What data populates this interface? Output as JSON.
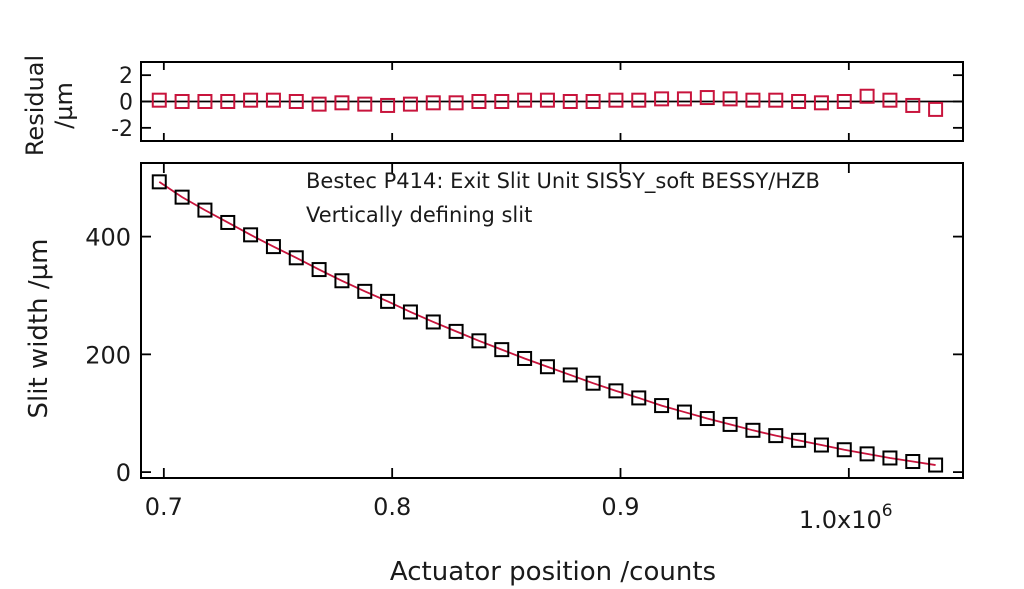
{
  "chart_data": {
    "type": "scatter",
    "annotation_lines": [
      "Bestec P414: Exit Slit Unit SISSY_soft BESSY/HZB",
      "Vertically defining slit"
    ],
    "xlabel": "Actuator position /counts",
    "x_exponent_label": "1.0x10",
    "x_exponent_power": "6",
    "xlim": [
      690000,
      1050000
    ],
    "x_ticks": [
      {
        "value": 700000,
        "label": "0.7"
      },
      {
        "value": 800000,
        "label": "0.8"
      },
      {
        "value": 900000,
        "label": "0.9"
      },
      {
        "value": 1000000,
        "label": ""
      }
    ],
    "main": {
      "ylabel": "Slit width /µm",
      "ylim": [
        -10,
        525
      ],
      "y_ticks": [
        {
          "value": 0,
          "label": "0"
        },
        {
          "value": 200,
          "label": "200"
        },
        {
          "value": 400,
          "label": "400"
        }
      ],
      "marker_color": "#000000",
      "fit_color": "#c8143c",
      "x": [
        698000,
        708000,
        718000,
        728000,
        738000,
        748000,
        758000,
        768000,
        778000,
        788000,
        798000,
        808000,
        818000,
        828000,
        838000,
        848000,
        858000,
        868000,
        878000,
        888000,
        898000,
        908000,
        918000,
        928000,
        938000,
        948000,
        958000,
        968000,
        978000,
        988000,
        998000,
        1008000,
        1018000,
        1028000,
        1038000
      ],
      "y": [
        493,
        467,
        445,
        424,
        403,
        383,
        364,
        344,
        325,
        307,
        290,
        272,
        255,
        239,
        223,
        208,
        193,
        179,
        165,
        151,
        138,
        126,
        113,
        102,
        91,
        81,
        71,
        62,
        54,
        46,
        38,
        31,
        24,
        18,
        12
      ]
    },
    "residual": {
      "ylabel_lines": [
        "Residual",
        "/µm"
      ],
      "ylim": [
        -3,
        3
      ],
      "y_ticks": [
        {
          "value": -2,
          "label": "-2"
        },
        {
          "value": 0,
          "label": "0"
        },
        {
          "value": 2,
          "label": "2"
        }
      ],
      "marker_color": "#c8143c",
      "x": [
        698000,
        708000,
        718000,
        728000,
        738000,
        748000,
        758000,
        768000,
        778000,
        788000,
        798000,
        808000,
        818000,
        828000,
        838000,
        848000,
        858000,
        868000,
        878000,
        888000,
        898000,
        908000,
        918000,
        928000,
        938000,
        948000,
        958000,
        968000,
        978000,
        988000,
        998000,
        1008000,
        1018000,
        1028000,
        1038000
      ],
      "y": [
        0.1,
        0.0,
        0.0,
        0.0,
        0.1,
        0.1,
        0.0,
        -0.2,
        -0.1,
        -0.2,
        -0.3,
        -0.2,
        -0.1,
        -0.1,
        0.0,
        0.0,
        0.1,
        0.1,
        0.0,
        0.0,
        0.1,
        0.1,
        0.2,
        0.2,
        0.3,
        0.2,
        0.1,
        0.1,
        0.0,
        -0.1,
        0.0,
        0.4,
        0.1,
        -0.3,
        -0.6
      ]
    }
  }
}
